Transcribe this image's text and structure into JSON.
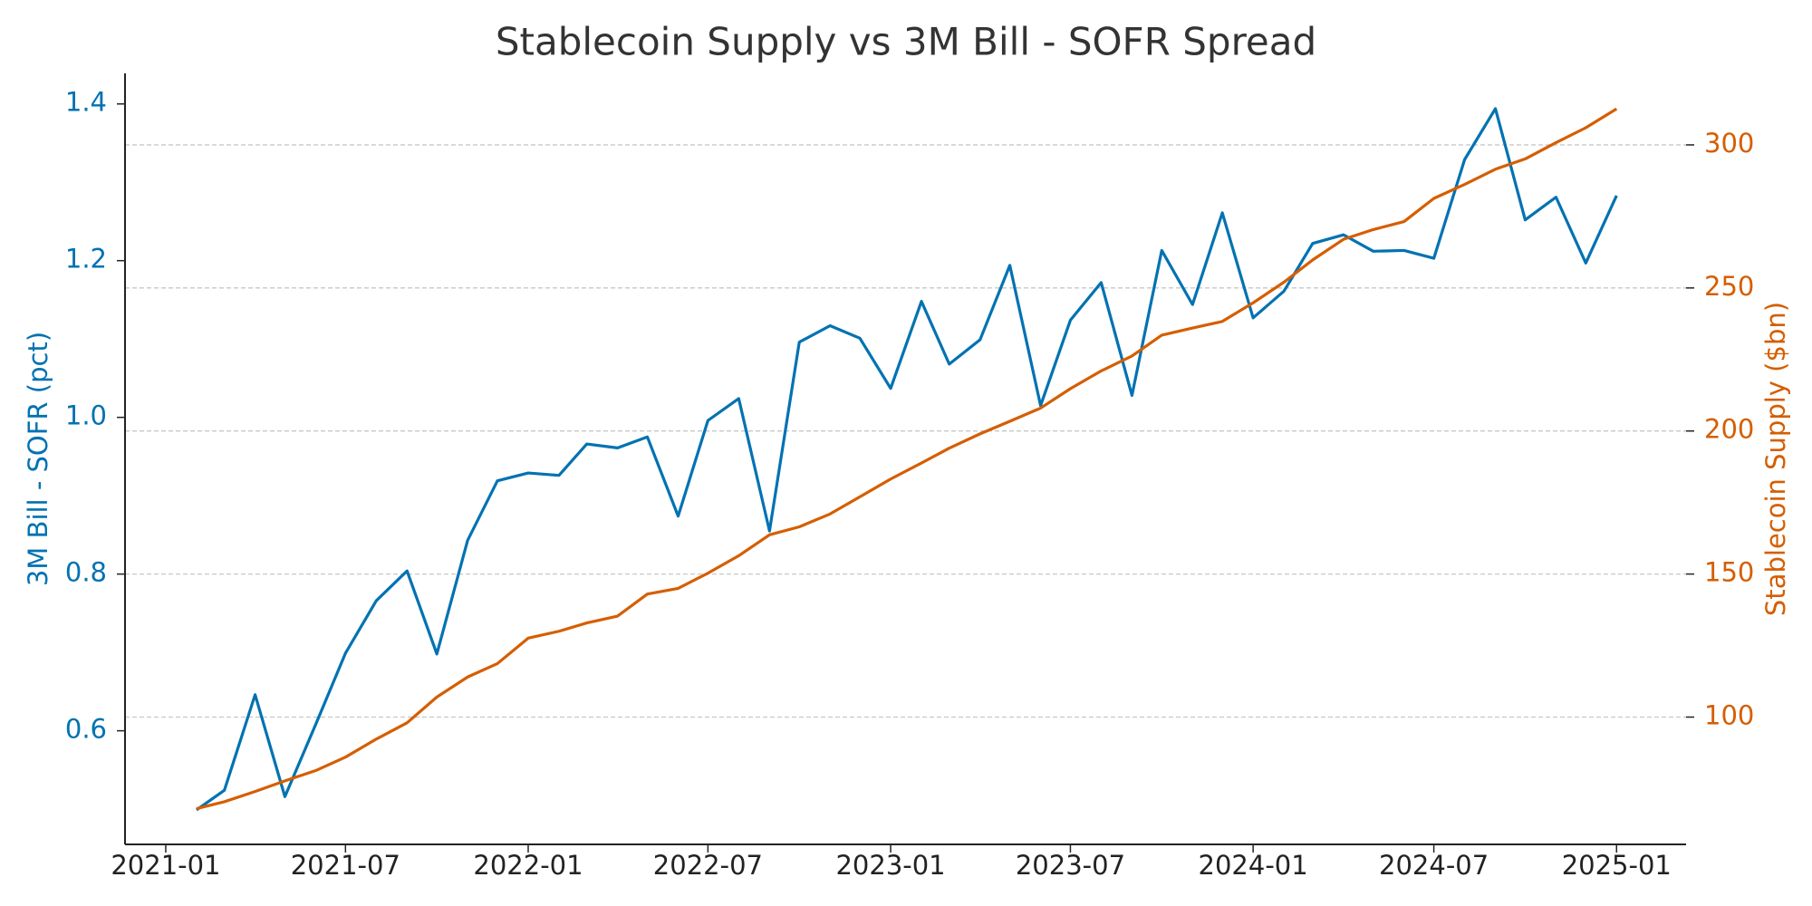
{
  "chart_data": {
    "type": "line",
    "title": "Stablecoin Supply vs 3M Bill - SOFR Spread",
    "ylabel": "3M Bill - SOFR (pct)",
    "y2label": "Stablecoin Supply ($bn)",
    "x": [
      "2021-02",
      "2021-03",
      "2021-04",
      "2021-05",
      "2021-06",
      "2021-07",
      "2021-08",
      "2021-09",
      "2021-10",
      "2021-11",
      "2021-12",
      "2022-01",
      "2022-02",
      "2022-03",
      "2022-04",
      "2022-05",
      "2022-06",
      "2022-07",
      "2022-08",
      "2022-09",
      "2022-10",
      "2022-11",
      "2022-12",
      "2023-01",
      "2023-02",
      "2023-03",
      "2023-04",
      "2023-05",
      "2023-06",
      "2023-07",
      "2023-08",
      "2023-09",
      "2023-10",
      "2023-11",
      "2023-12",
      "2024-01",
      "2024-02",
      "2024-03",
      "2024-04",
      "2024-05",
      "2024-06",
      "2024-07",
      "2024-08",
      "2024-09",
      "2024-10",
      "2024-11",
      "2024-12",
      "2025-01"
    ],
    "series": [
      {
        "color": "#0072B2",
        "axis": "y",
        "values": [
          0.499,
          0.524,
          0.646,
          0.516,
          0.608,
          0.699,
          0.766,
          0.804,
          0.698,
          0.843,
          0.919,
          0.929,
          0.926,
          0.966,
          0.961,
          0.975,
          0.874,
          0.996,
          1.024,
          0.855,
          1.096,
          1.117,
          1.101,
          1.037,
          1.148,
          1.068,
          1.099,
          1.194,
          1.015,
          1.124,
          1.172,
          1.028,
          1.213,
          1.144,
          1.261,
          1.127,
          1.161,
          1.222,
          1.233,
          1.212,
          1.213,
          1.203,
          1.329,
          1.394,
          1.252,
          1.281,
          1.197,
          1.283
        ]
      },
      {
        "color": "#D55E00",
        "axis": "y2",
        "values": [
          68,
          70.4,
          74,
          77.7,
          81.3,
          86,
          92.3,
          98,
          107,
          114,
          118.7,
          127.6,
          130,
          132.9,
          135.3,
          143,
          145,
          150.3,
          156.4,
          163.7,
          166.5,
          171,
          177,
          183.2,
          188.8,
          194,
          199,
          203.4,
          208,
          214.8,
          221,
          226.2,
          233.5,
          236,
          238.3,
          244.8,
          252,
          259.8,
          267,
          270.4,
          273.2,
          281.3,
          286.2,
          291.5,
          295.1,
          300.8,
          306,
          312.6
        ]
      }
    ],
    "xlim": [
      "2020-11-21",
      "2025-03-12"
    ],
    "xticks": [
      "2021-01",
      "2021-07",
      "2022-01",
      "2022-07",
      "2023-01",
      "2023-07",
      "2024-01",
      "2024-07",
      "2025-01"
    ],
    "ylim": [
      0.455,
      1.439
    ],
    "yticks": [
      0.6,
      0.8,
      1.0,
      1.2,
      1.4
    ],
    "y2lim": [
      55.5,
      325
    ],
    "y2ticks": [
      100,
      150,
      200,
      250,
      300
    ],
    "grid": true,
    "grid_axis": "y2"
  }
}
